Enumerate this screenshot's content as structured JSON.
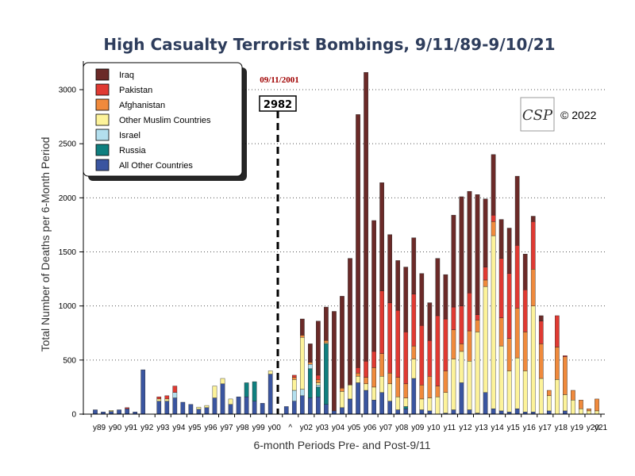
{
  "chart_data": {
    "type": "bar",
    "stacked": true,
    "title": "High Casualty Terrorist Bombings, 9/11/89-9/10/21",
    "xlabel": "6-month Periods Pre- and Post-9/11",
    "ylabel": "Total Number of Deaths per 6-Month Period",
    "ylim": [
      0,
      3200
    ],
    "y_ticks": [
      0,
      500,
      1000,
      1500,
      2000,
      2500,
      3000
    ],
    "grid": true,
    "legend_position": "top-left",
    "x_tick_labels": [
      "y89",
      "y90",
      "y91",
      "y92",
      "y93",
      "y94",
      "y95",
      "y96",
      "y97",
      "y98",
      "y99",
      "y00",
      "^",
      "y02",
      "y03",
      "y04",
      "y05",
      "y06",
      "y07",
      "y08",
      "y09",
      "y10",
      "y11",
      "y12",
      "y13",
      "y14",
      "y15",
      "y16",
      "y17",
      "y18",
      "y19",
      "y20",
      "y21"
    ],
    "categories": [
      "1",
      "2",
      "3",
      "4",
      "5",
      "6",
      "7",
      "8",
      "9",
      "10",
      "11",
      "12",
      "13",
      "14",
      "15",
      "16",
      "17",
      "18",
      "19",
      "20",
      "21",
      "22",
      "23",
      "24",
      "25",
      "26",
      "27",
      "28",
      "29",
      "30",
      "31",
      "32",
      "33",
      "34",
      "35",
      "36",
      "37",
      "38",
      "39",
      "40",
      "41",
      "42",
      "43",
      "44",
      "45",
      "46",
      "47",
      "48",
      "49",
      "50",
      "51",
      "52",
      "53",
      "54",
      "55",
      "56",
      "57",
      "58",
      "59",
      "60",
      "61",
      "62",
      "63",
      "64"
    ],
    "series": [
      {
        "name": "All Other Countries",
        "color": "#3a55a0",
        "values": [
          40,
          20,
          25,
          40,
          50,
          20,
          410,
          0,
          120,
          120,
          150,
          110,
          90,
          45,
          60,
          150,
          280,
          90,
          160,
          160,
          120,
          100,
          370,
          0,
          70,
          120,
          170,
          150,
          160,
          90,
          30,
          60,
          140,
          290,
          220,
          130,
          200,
          120,
          40,
          50,
          330,
          40,
          30,
          0,
          10,
          40,
          290,
          40,
          10,
          200,
          50,
          30,
          20,
          50,
          20,
          20,
          0,
          30,
          0,
          30,
          0,
          0,
          0,
          0
        ]
      },
      {
        "name": "Russia",
        "color": "#0f7f7f",
        "values": [
          0,
          0,
          0,
          0,
          0,
          0,
          0,
          0,
          0,
          0,
          0,
          0,
          0,
          0,
          0,
          0,
          0,
          0,
          0,
          130,
          180,
          0,
          0,
          0,
          0,
          0,
          0,
          270,
          90,
          560,
          0,
          0,
          0,
          0,
          0,
          0,
          0,
          0,
          0,
          20,
          0,
          0,
          0,
          0,
          0,
          0,
          0,
          0,
          0,
          0,
          0,
          0,
          0,
          0,
          0,
          0,
          0,
          0,
          0,
          0,
          0,
          0,
          0,
          0
        ]
      },
      {
        "name": "Israel",
        "color": "#b3dfee",
        "values": [
          0,
          0,
          0,
          0,
          0,
          0,
          0,
          0,
          0,
          0,
          50,
          0,
          0,
          0,
          0,
          0,
          0,
          0,
          0,
          0,
          0,
          0,
          0,
          0,
          0,
          100,
          60,
          40,
          20,
          0,
          0,
          0,
          0,
          0,
          0,
          0,
          0,
          0,
          0,
          0,
          0,
          0,
          0,
          0,
          0,
          0,
          0,
          0,
          0,
          0,
          0,
          0,
          0,
          0,
          0,
          0,
          0,
          0,
          0,
          0,
          0,
          0,
          0,
          0
        ]
      },
      {
        "name": "Other Muslim Countries",
        "color": "#fdf39a",
        "values": [
          0,
          0,
          10,
          0,
          0,
          0,
          0,
          0,
          20,
          20,
          0,
          0,
          0,
          20,
          20,
          110,
          50,
          50,
          0,
          0,
          0,
          0,
          30,
          0,
          0,
          100,
          480,
          0,
          20,
          10,
          0,
          150,
          130,
          60,
          60,
          120,
          150,
          160,
          120,
          80,
          180,
          100,
          120,
          160,
          190,
          470,
          290,
          450,
          750,
          980,
          1600,
          600,
          380,
          470,
          380,
          980,
          330,
          140,
          320,
          150,
          130,
          50,
          30,
          30
        ]
      },
      {
        "name": "Afghanistan",
        "color": "#f08a3c",
        "values": [
          0,
          0,
          0,
          0,
          0,
          0,
          0,
          0,
          0,
          0,
          0,
          0,
          0,
          0,
          0,
          0,
          0,
          0,
          0,
          0,
          0,
          0,
          0,
          0,
          0,
          20,
          20,
          20,
          30,
          20,
          0,
          30,
          0,
          30,
          60,
          180,
          210,
          100,
          180,
          130,
          120,
          130,
          200,
          100,
          200,
          270,
          70,
          280,
          110,
          60,
          130,
          260,
          300,
          460,
          360,
          340,
          320,
          50,
          300,
          350,
          90,
          80,
          20,
          110
        ]
      },
      {
        "name": "Pakistan",
        "color": "#e03a32",
        "values": [
          0,
          0,
          0,
          0,
          10,
          0,
          0,
          0,
          20,
          30,
          60,
          0,
          0,
          0,
          0,
          0,
          0,
          0,
          0,
          0,
          0,
          0,
          0,
          0,
          0,
          20,
          0,
          0,
          40,
          0,
          0,
          0,
          0,
          50,
          150,
          150,
          580,
          650,
          620,
          480,
          480,
          550,
          330,
          650,
          480,
          210,
          350,
          350,
          50,
          120,
          60,
          550,
          600,
          580,
          390,
          440,
          210,
          0,
          290,
          10,
          0,
          0,
          0,
          0
        ]
      },
      {
        "name": "Iraq",
        "color": "#6b2a28",
        "values": [
          0,
          0,
          0,
          0,
          0,
          0,
          0,
          0,
          0,
          0,
          0,
          0,
          0,
          0,
          0,
          0,
          0,
          0,
          0,
          0,
          0,
          0,
          0,
          0,
          0,
          0,
          150,
          170,
          500,
          310,
          920,
          850,
          1170,
          2340,
          2670,
          1210,
          1000,
          630,
          460,
          600,
          520,
          480,
          350,
          530,
          410,
          850,
          1010,
          940,
          1110,
          630,
          560,
          360,
          420,
          640,
          330,
          50,
          50,
          0,
          0,
          0,
          0,
          0,
          0,
          0
        ]
      }
    ]
  },
  "annotation": {
    "date": "09/11/2001",
    "value": "2982"
  },
  "copyright": "© 2022",
  "logo_text": "CSP",
  "colors": {
    "title": "#2e3d5c",
    "annotation_date": "#a00000",
    "grid": "#555555"
  }
}
